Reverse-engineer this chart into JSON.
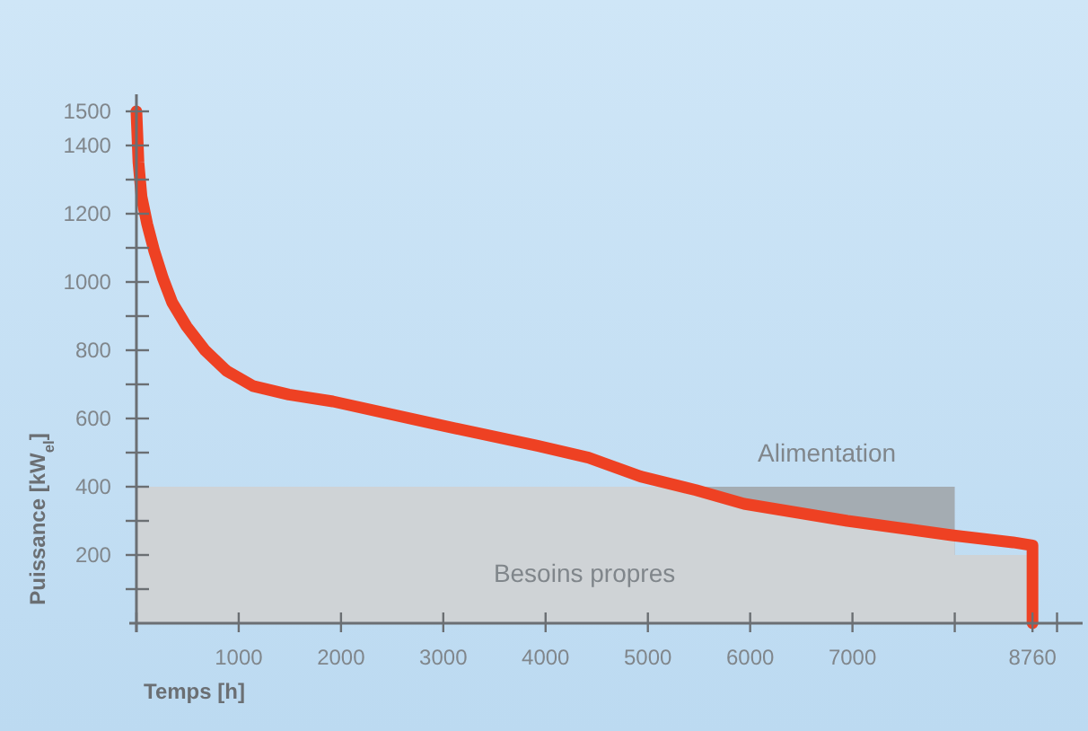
{
  "chart_data": {
    "type": "line",
    "xlabel": "Temps [h]",
    "ylabel": "Puissance [kW$_{el}$]",
    "xlim": [
      -70,
      9250
    ],
    "ylim": [
      0,
      1550
    ],
    "xticks": [
      {
        "value": 0,
        "label": null
      },
      1000,
      2000,
      3000,
      4000,
      5000,
      6000,
      7000,
      {
        "value": 8000,
        "label": null
      },
      8760,
      {
        "value": 9000,
        "label": null
      }
    ],
    "yticks": [
      {
        "value": 100,
        "label": null
      },
      200,
      {
        "value": 300,
        "label": null
      },
      400,
      {
        "value": 500,
        "label": null
      },
      600,
      {
        "value": 700,
        "label": null
      },
      800,
      {
        "value": 900,
        "label": null
      },
      1000,
      {
        "value": 1100,
        "label": null
      },
      1200,
      {
        "value": 1300,
        "label": null
      },
      1400,
      1500
    ],
    "grid": false,
    "legend": false,
    "marker": "none",
    "line_style": "solid",
    "series": [
      {
        "type": "area",
        "name": "Alimentation",
        "color": "#a4acb2",
        "x": [
          5500,
          8000
        ],
        "values": [
          400,
          400
        ]
      },
      {
        "type": "area",
        "name": "Besoins propres",
        "color": "#cfd3d6",
        "x": [
          0,
          5500,
          6000,
          7000,
          8000,
          8000,
          8760
        ],
        "values": [
          400,
          400,
          345,
          298,
          255,
          200,
          200
        ]
      },
      {
        "color": "#ee4123",
        "x": [
          0,
          20,
          50,
          105,
          175,
          260,
          350,
          490,
          670,
          880,
          1140,
          1490,
          1920,
          2900,
          3920,
          4420,
          4930,
          5470,
          5940,
          6950,
          7970,
          8570,
          8760,
          8760
        ],
        "values": [
          1500,
          1350,
          1250,
          1170,
          1090,
          1010,
          940,
          870,
          800,
          740,
          695,
          670,
          650,
          585,
          520,
          485,
          430,
          390,
          350,
          300,
          258,
          237,
          228,
          0
        ]
      }
    ]
  }
}
